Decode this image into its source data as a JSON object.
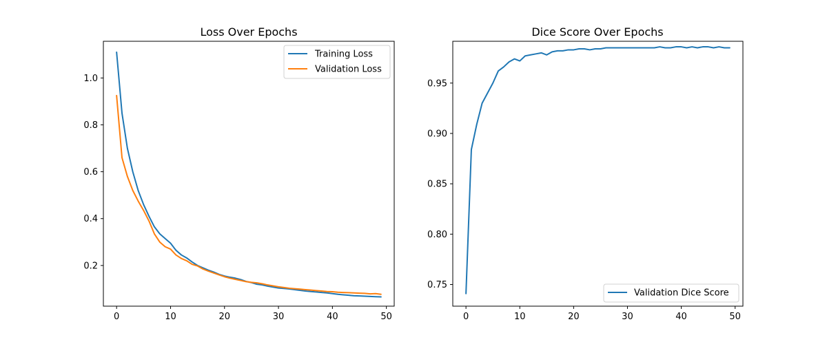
{
  "chart_data": [
    {
      "type": "line",
      "title": "Loss Over Epochs",
      "xlabel": "",
      "ylabel": "",
      "xlim": [
        -2.45,
        51.45
      ],
      "ylim": [
        0.0265,
        1.1565
      ],
      "x_ticks": [
        0,
        10,
        20,
        30,
        40,
        50
      ],
      "y_ticks": [
        0.2,
        0.4,
        0.6,
        0.8,
        1.0
      ],
      "y_tick_labels": [
        "0.2",
        "0.4",
        "0.6",
        "0.8",
        "1.0"
      ],
      "grid": false,
      "legend_position": "top-right",
      "x": [
        0,
        1,
        2,
        3,
        4,
        5,
        6,
        7,
        8,
        9,
        10,
        11,
        12,
        13,
        14,
        15,
        16,
        17,
        18,
        19,
        20,
        21,
        22,
        23,
        24,
        25,
        26,
        27,
        28,
        29,
        30,
        31,
        32,
        33,
        34,
        35,
        36,
        37,
        38,
        39,
        40,
        41,
        42,
        43,
        44,
        45,
        46,
        47,
        48,
        49
      ],
      "series": [
        {
          "name": "Training Loss",
          "color": "#1f77b4",
          "values": [
            1.11,
            0.85,
            0.7,
            0.6,
            0.52,
            0.46,
            0.41,
            0.365,
            0.335,
            0.315,
            0.295,
            0.265,
            0.245,
            0.232,
            0.215,
            0.2,
            0.19,
            0.18,
            0.172,
            0.162,
            0.155,
            0.15,
            0.146,
            0.14,
            0.132,
            0.127,
            0.12,
            0.117,
            0.112,
            0.108,
            0.104,
            0.102,
            0.1,
            0.097,
            0.094,
            0.091,
            0.089,
            0.087,
            0.085,
            0.083,
            0.08,
            0.077,
            0.075,
            0.073,
            0.071,
            0.07,
            0.069,
            0.068,
            0.067,
            0.066
          ]
        },
        {
          "name": "Validation Loss",
          "color": "#ff7f0e",
          "values": [
            0.925,
            0.66,
            0.58,
            0.52,
            0.475,
            0.435,
            0.39,
            0.335,
            0.3,
            0.28,
            0.27,
            0.245,
            0.23,
            0.22,
            0.205,
            0.198,
            0.185,
            0.176,
            0.168,
            0.16,
            0.152,
            0.146,
            0.141,
            0.136,
            0.131,
            0.128,
            0.126,
            0.122,
            0.117,
            0.113,
            0.109,
            0.106,
            0.103,
            0.101,
            0.099,
            0.097,
            0.095,
            0.093,
            0.091,
            0.089,
            0.088,
            0.086,
            0.085,
            0.084,
            0.083,
            0.082,
            0.081,
            0.079,
            0.08,
            0.077
          ]
        }
      ]
    },
    {
      "type": "line",
      "title": "Dice Score Over Epochs",
      "xlabel": "",
      "ylabel": "",
      "xlim": [
        -2.45,
        51.45
      ],
      "ylim": [
        0.7285,
        0.9915
      ],
      "x_ticks": [
        0,
        10,
        20,
        30,
        40,
        50
      ],
      "y_ticks": [
        0.75,
        0.8,
        0.85,
        0.9,
        0.95
      ],
      "y_tick_labels": [
        "0.75",
        "0.80",
        "0.85",
        "0.90",
        "0.95"
      ],
      "grid": false,
      "legend_position": "bottom-right",
      "x": [
        0,
        1,
        2,
        3,
        4,
        5,
        6,
        7,
        8,
        9,
        10,
        11,
        12,
        13,
        14,
        15,
        16,
        17,
        18,
        19,
        20,
        21,
        22,
        23,
        24,
        25,
        26,
        27,
        28,
        29,
        30,
        31,
        32,
        33,
        34,
        35,
        36,
        37,
        38,
        39,
        40,
        41,
        42,
        43,
        44,
        45,
        46,
        47,
        48,
        49
      ],
      "series": [
        {
          "name": "Validation Dice Score",
          "color": "#1f77b4",
          "values": [
            0.741,
            0.884,
            0.909,
            0.93,
            0.94,
            0.95,
            0.962,
            0.966,
            0.971,
            0.974,
            0.972,
            0.977,
            0.978,
            0.979,
            0.98,
            0.978,
            0.981,
            0.982,
            0.982,
            0.983,
            0.983,
            0.984,
            0.984,
            0.983,
            0.984,
            0.984,
            0.985,
            0.985,
            0.985,
            0.985,
            0.985,
            0.985,
            0.985,
            0.985,
            0.985,
            0.985,
            0.986,
            0.985,
            0.985,
            0.986,
            0.986,
            0.985,
            0.986,
            0.985,
            0.986,
            0.986,
            0.985,
            0.986,
            0.985,
            0.985
          ]
        }
      ]
    }
  ]
}
